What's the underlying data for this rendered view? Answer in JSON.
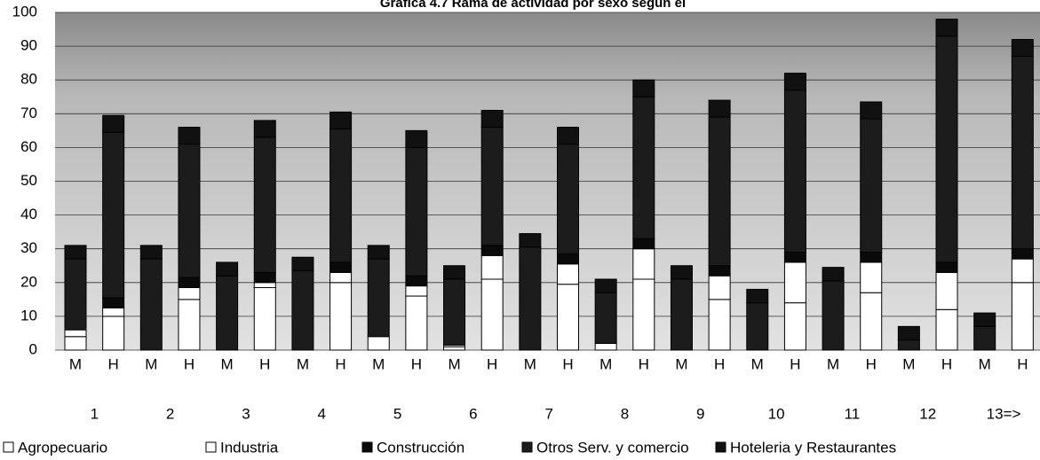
{
  "chart_data": {
    "type": "stacked_bar",
    "title": "Gráfica 4.7 Rama de actividad por sexo según el",
    "categories": [
      "M",
      "H",
      "M",
      "H",
      "M",
      "H",
      "M",
      "H",
      "M",
      "H",
      "M",
      "H",
      "M",
      "H",
      "M",
      "H",
      "M",
      "H",
      "M",
      "H",
      "M",
      "H",
      "M",
      "H",
      "M",
      "H"
    ],
    "groups": [
      "1",
      "2",
      "3",
      "4",
      "5",
      "6",
      "7",
      "8",
      "9",
      "10",
      "11",
      "12",
      "13=>"
    ],
    "series": [
      {
        "name": "Agropecuario",
        "color": "#ffffff",
        "values": [
          4,
          10,
          0,
          15,
          0,
          18.5,
          0,
          20,
          4,
          16,
          1,
          21,
          0,
          19.5,
          2,
          21,
          0,
          15,
          0,
          14,
          0,
          17,
          0,
          12,
          0,
          20
        ]
      },
      {
        "name": "Industria",
        "color": "#ffffff",
        "values": [
          2,
          2.5,
          0,
          3.5,
          0,
          1.5,
          0,
          3,
          0,
          3,
          0.5,
          7,
          0,
          6,
          0,
          9,
          0,
          7,
          0,
          12,
          0,
          9,
          0,
          11,
          0,
          7
        ]
      },
      {
        "name": "Construcción",
        "color": "#0a0a0a",
        "values": [
          0,
          3,
          0,
          3,
          0,
          3,
          0,
          3,
          0,
          3,
          0,
          3,
          0,
          3,
          0,
          3,
          0,
          3,
          0,
          3,
          0,
          3,
          0,
          3,
          0,
          3
        ]
      },
      {
        "name": "Otros Serv. y comercio",
        "color": "#1c1c1c",
        "values": [
          21,
          49,
          27,
          39.5,
          22,
          40,
          23.5,
          39.5,
          23,
          38,
          19.5,
          35,
          30.5,
          32.5,
          15,
          42,
          21,
          44,
          14,
          48,
          20.5,
          39.5,
          3,
          67,
          7,
          57
        ]
      },
      {
        "name": "Hoteleria y Restaurantes",
        "color": "#111111",
        "values": [
          4,
          5,
          4,
          5,
          4,
          5,
          4,
          5,
          4,
          5,
          4,
          5,
          4,
          5,
          4,
          5,
          4,
          5,
          4,
          5,
          4,
          5,
          4,
          5,
          4,
          5
        ]
      }
    ],
    "ylim": [
      0,
      100
    ],
    "yticks": [
      0,
      10,
      20,
      30,
      40,
      50,
      60,
      70,
      80,
      90,
      100
    ],
    "grid": true
  }
}
